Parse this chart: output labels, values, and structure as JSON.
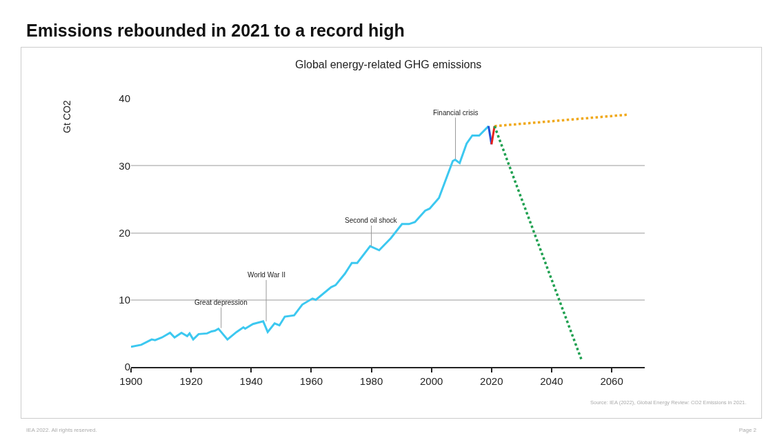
{
  "chart_data": {
    "type": "line",
    "title": "Emissions rebounded in 2021 to a record high",
    "subtitle": "Global energy-related GHG emissions",
    "ylabel": "Gt CO2",
    "series": [
      {
        "color": "#3cc8f0",
        "x": [
          1900,
          1903.4,
          1906.9,
          1908,
          1910.3,
          1913,
          1914.5,
          1916.8,
          1918.7,
          1919.5,
          1920.7,
          1922.5,
          1925.3,
          1926.8,
          1927.9,
          1929.1,
          1932.1,
          1935.1,
          1937.4,
          1938,
          1940.6,
          1944,
          1945.5,
          1947.8,
          1949.4,
          1951.2,
          1954.3,
          1957,
          1960.4,
          1961.5,
          1966.6,
          1968.1,
          1971.2,
          1973.5,
          1975.3,
          1979.6,
          1982.6,
          1986.5,
          1990.2,
          1992.5,
          1994.5,
          1997.9,
          1999.4,
          2002.5,
          2007.1,
          2007.9,
          2009.4,
          2011.7,
          2013.6,
          2015.9,
          2019
        ],
        "values": [
          3.0,
          3.3,
          4.1,
          4.0,
          4.4,
          5.1,
          4.4,
          5.1,
          4.6,
          5.0,
          4.1,
          4.9,
          5.0,
          5.3,
          5.4,
          5.7,
          4.1,
          5.2,
          5.9,
          5.7,
          6.4,
          6.8,
          5.2,
          6.5,
          6.2,
          7.5,
          7.7,
          9.3,
          10.2,
          10.0,
          11.9,
          12.2,
          13.9,
          15.5,
          15.5,
          18.0,
          17.4,
          19.2,
          21.3,
          21.3,
          21.6,
          23.3,
          23.6,
          25.2,
          30.7,
          30.9,
          30.4,
          33.3,
          34.5,
          34.5,
          35.9
        ]
      },
      {
        "color": "#1f4fd8",
        "x": [
          2019,
          2020
        ],
        "values": [
          35.9,
          33.2
        ]
      },
      {
        "color": "#e8201a",
        "x": [
          2020,
          2021
        ],
        "values": [
          33.2,
          35.9
        ]
      },
      {
        "color": "#f0a818",
        "x": [
          2021,
          2065
        ],
        "values": [
          35.9,
          37.6
        ],
        "line_style": "dotted"
      },
      {
        "color": "#1fa050",
        "x": [
          2021,
          2050
        ],
        "values": [
          35.9,
          1
        ],
        "line_style": "dotted"
      }
    ],
    "xlim": [
      1900,
      2071
    ],
    "xticks": [
      1900,
      1920,
      1940,
      1960,
      1980,
      2000,
      2020,
      2040,
      2060
    ],
    "ylim": [
      0,
      40
    ],
    "yticks": [
      0,
      10,
      20,
      30,
      40
    ],
    "grid": "y",
    "annotations": [
      {
        "text": "Great depression",
        "x": 1930,
        "y": 5.8
      },
      {
        "text": "World War II",
        "x": 1945,
        "y": 6.8
      },
      {
        "text": "Second oil shock",
        "x": 1980,
        "y": 18
      },
      {
        "text": "Financial crisis",
        "x": 2008,
        "y": 31
      },
      "Source: IEA (2022), Global Energy Review: CO2 Emissions in 2021.",
      "IEA 2022. All rights reserved.",
      "Page 2"
    ]
  }
}
